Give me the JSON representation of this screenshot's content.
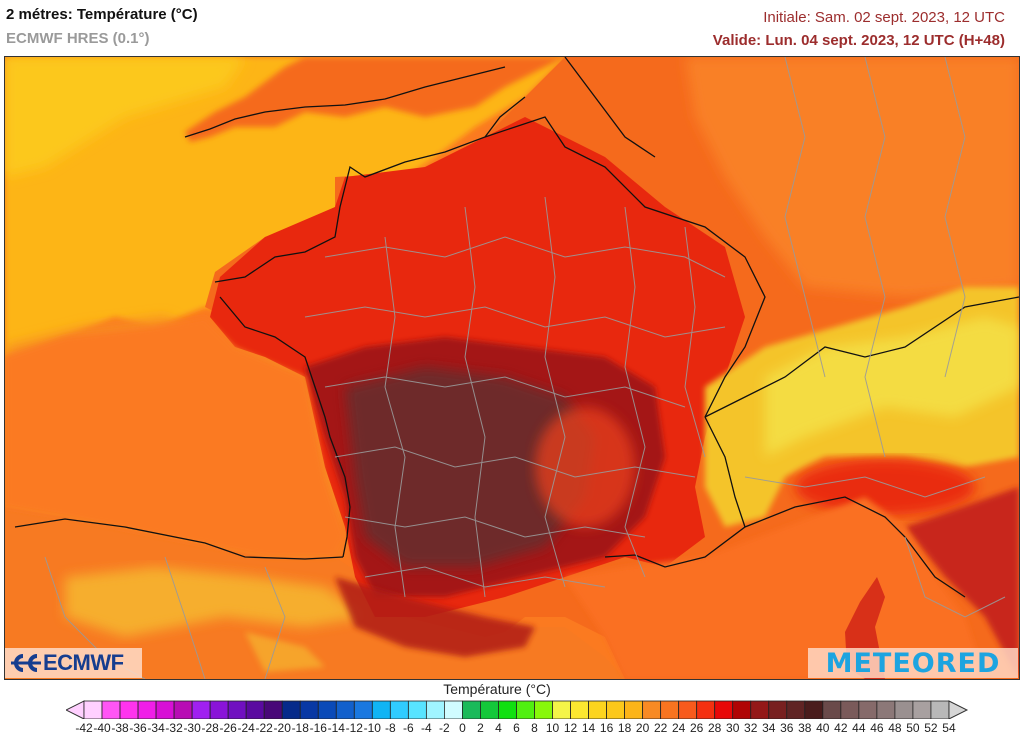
{
  "header": {
    "title": "2 métres: Température (°C)",
    "model": "ECMWF HRES (0.1°)",
    "initial": "Initiale: Sam. 02 sept. 2023, 12 UTC",
    "valid": "Valide: Lun. 04 sept. 2023, 12 UTC (H+48)"
  },
  "map": {
    "region": "France and surrounding Western Europe",
    "variable": "2 m temperature",
    "features": [
      "coastlines",
      "country borders",
      "department/region borders",
      "terrain shading"
    ],
    "colors": {
      "sea_atlantic_far": "#fdb515",
      "sea_near": "#fb7a20",
      "land_warm": "#f25a1e",
      "land_hot": "#e8180d",
      "land_very_hot": "#8c1a18",
      "land_extreme": "#6b3030",
      "alps_cool": "#f3e22c",
      "border_country": "#111111",
      "border_admin": "#9a9a9a"
    }
  },
  "logos": {
    "left": "ECMWF",
    "right": "METEORED"
  },
  "colorbar": {
    "title": "Température (°C)",
    "labels": [
      "-42",
      "-40",
      "-38",
      "-36",
      "-34",
      "-32",
      "-30",
      "-28",
      "-26",
      "-24",
      "-22",
      "-20",
      "-18",
      "-16",
      "-14",
      "-12",
      "-10",
      "-8",
      "-6",
      "-4",
      "-2",
      "0",
      "2",
      "4",
      "6",
      "8",
      "10",
      "12",
      "14",
      "16",
      "18",
      "20",
      "22",
      "24",
      "26",
      "28",
      "30",
      "32",
      "34",
      "36",
      "38",
      "40",
      "42",
      "44",
      "46",
      "48",
      "50",
      "52",
      "54"
    ],
    "min_arrow_color": "#ffd0ff",
    "max_arrow_color": "#d6d6d6",
    "bins": [
      "#ffd0ff",
      "#ff55f5",
      "#ff33ee",
      "#f01ee8",
      "#d80fd6",
      "#b80cb4",
      "#a020f0",
      "#8a14d8",
      "#7010c0",
      "#5a0aa0",
      "#480878",
      "#062a8a",
      "#0838a4",
      "#0a4ab8",
      "#1260cc",
      "#1a78e0",
      "#10b4f4",
      "#30ccff",
      "#58e4ff",
      "#a0f4ff",
      "#d0fcff",
      "#1aba5a",
      "#14c83a",
      "#10e010",
      "#50f010",
      "#88f80a",
      "#f4f448",
      "#fce830",
      "#fcd41e",
      "#fcc81a",
      "#fcb418",
      "#f88a24",
      "#f87420",
      "#f85a1c",
      "#f43010",
      "#e80808",
      "#b00404",
      "#941818",
      "#782020",
      "#602424",
      "#4a1c1c",
      "#6a4a4a",
      "#7a5a5a",
      "#866a6a",
      "#8c7878",
      "#9a9090",
      "#a8a0a0",
      "#b8b8b8"
    ]
  },
  "chart_data": {
    "type": "heatmap",
    "title": "2 métres: Température (°C)",
    "subtitle": "ECMWF HRES (0.1°)",
    "init_time": "Sam. 02 sept. 2023, 12 UTC",
    "valid_time": "Lun. 04 sept. 2023, 12 UTC (H+48)",
    "lead_hours": 48,
    "colorbar_label": "Température (°C)",
    "colorbar_range": [
      -42,
      54
    ],
    "colorbar_step": 2,
    "regions_approx_temp_c": [
      {
        "area": "Atlantic / Celtic Sea (far)",
        "range": "16-20"
      },
      {
        "area": "Bay of Biscay, Mediterranean sea",
        "range": "22-26"
      },
      {
        "area": "Northern France, Belgium, Germany",
        "range": "24-28"
      },
      {
        "area": "Brittany, Paris basin",
        "range": "28-32"
      },
      {
        "area": "Southwest & central France",
        "range": "34-38"
      },
      {
        "area": "Alps high terrain",
        "range": "10-20"
      },
      {
        "area": "Po valley, Italy",
        "range": "28-32"
      },
      {
        "area": "Northern Spain (Cantabrian range)",
        "range": "18-28"
      }
    ]
  }
}
